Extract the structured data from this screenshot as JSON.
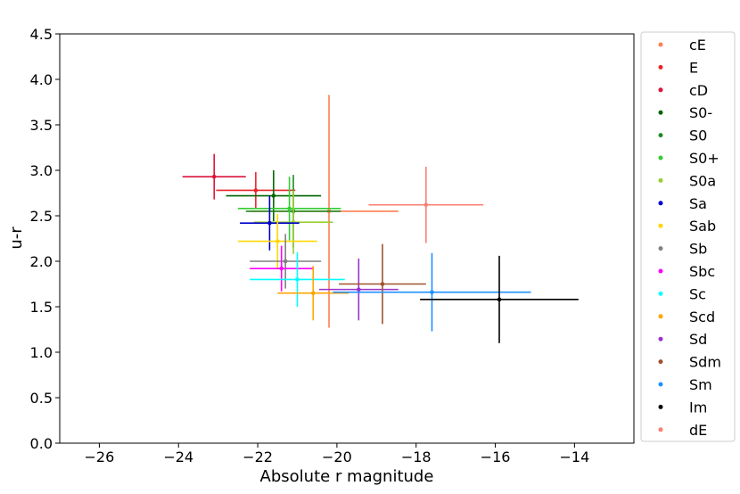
{
  "chart_data": {
    "type": "scatter",
    "title": "",
    "xlabel": "Absolute r magnitude",
    "ylabel": "u-r",
    "xlim": [
      -27,
      -12.5
    ],
    "ylim": [
      0,
      4.5
    ],
    "xticks": [
      -26,
      -24,
      -22,
      -20,
      -18,
      -16,
      -14
    ],
    "xtick_labels": [
      "−26",
      "−24",
      "−22",
      "−20",
      "−18",
      "−16",
      "−14"
    ],
    "yticks": [
      0.0,
      0.5,
      1.0,
      1.5,
      2.0,
      2.5,
      3.0,
      3.5,
      4.0,
      4.5
    ],
    "ytick_labels": [
      "0.0",
      "0.5",
      "1.0",
      "1.5",
      "2.0",
      "2.5",
      "3.0",
      "3.5",
      "4.0",
      "4.5"
    ],
    "grid": false,
    "legend_position": "outside-right",
    "error_bars": true,
    "series": [
      {
        "name": "cE",
        "color": "#ff7f50",
        "x": -20.2,
        "y": 2.55,
        "xerr": [
          2.0,
          1.75
        ],
        "yerr": [
          1.28,
          1.28
        ]
      },
      {
        "name": "E",
        "color": "#e8262a",
        "x": -22.05,
        "y": 2.78,
        "xerr": [
          1.0,
          1.0
        ],
        "yerr": [
          0.2,
          0.2
        ]
      },
      {
        "name": "cD",
        "color": "#dc143c",
        "x": -23.1,
        "y": 2.93,
        "xerr": [
          0.8,
          0.8
        ],
        "yerr": [
          0.25,
          0.25
        ]
      },
      {
        "name": "S0-",
        "color": "#006400",
        "x": -21.6,
        "y": 2.72,
        "xerr": [
          1.2,
          1.2
        ],
        "yerr": [
          0.28,
          0.28
        ]
      },
      {
        "name": "S0",
        "color": "#228b22",
        "x": -21.1,
        "y": 2.55,
        "xerr": [
          1.2,
          1.2
        ],
        "yerr": [
          0.4,
          0.4
        ]
      },
      {
        "name": "S0+",
        "color": "#32cd32",
        "x": -21.2,
        "y": 2.58,
        "xerr": [
          1.3,
          1.3
        ],
        "yerr": [
          0.35,
          0.35
        ]
      },
      {
        "name": "S0a",
        "color": "#9acd32",
        "x": -21.1,
        "y": 2.43,
        "xerr": [
          1.0,
          1.0
        ],
        "yerr": [
          0.35,
          0.35
        ]
      },
      {
        "name": "Sa",
        "color": "#0000cd",
        "x": -21.7,
        "y": 2.42,
        "xerr": [
          0.75,
          0.75
        ],
        "yerr": [
          0.3,
          0.3
        ]
      },
      {
        "name": "Sab",
        "color": "#ffd700",
        "x": -21.5,
        "y": 2.22,
        "xerr": [
          1.0,
          1.0
        ],
        "yerr": [
          0.3,
          0.3
        ]
      },
      {
        "name": "Sb",
        "color": "#808080",
        "x": -21.3,
        "y": 2.0,
        "xerr": [
          0.9,
          0.9
        ],
        "yerr": [
          0.3,
          0.3
        ]
      },
      {
        "name": "Sbc",
        "color": "#ff00ff",
        "x": -21.4,
        "y": 1.92,
        "xerr": [
          0.8,
          0.8
        ],
        "yerr": [
          0.25,
          0.25
        ]
      },
      {
        "name": "Sc",
        "color": "#00ffff",
        "x": -21.0,
        "y": 1.8,
        "xerr": [
          1.2,
          1.2
        ],
        "yerr": [
          0.3,
          0.3
        ]
      },
      {
        "name": "Scd",
        "color": "#ffa500",
        "x": -20.6,
        "y": 1.65,
        "xerr": [
          0.9,
          0.9
        ],
        "yerr": [
          0.3,
          0.3
        ]
      },
      {
        "name": "Sd",
        "color": "#9932cc",
        "x": -19.45,
        "y": 1.69,
        "xerr": [
          1.0,
          1.0
        ],
        "yerr": [
          0.34,
          0.34
        ]
      },
      {
        "name": "Sdm",
        "color": "#a0522d",
        "x": -18.85,
        "y": 1.75,
        "xerr": [
          1.1,
          1.1
        ],
        "yerr": [
          0.44,
          0.44
        ]
      },
      {
        "name": "Sm",
        "color": "#1e90ff",
        "x": -17.6,
        "y": 1.66,
        "xerr": [
          2.5,
          2.5
        ],
        "yerr": [
          0.43,
          0.43
        ]
      },
      {
        "name": "Im",
        "color": "#000000",
        "x": -15.9,
        "y": 1.58,
        "xerr": [
          2.0,
          2.0
        ],
        "yerr": [
          0.48,
          0.48
        ]
      },
      {
        "name": "dE",
        "color": "#fa8072",
        "x": -17.75,
        "y": 2.62,
        "xerr": [
          1.45,
          1.45
        ],
        "yerr": [
          0.42,
          0.42
        ]
      }
    ]
  }
}
